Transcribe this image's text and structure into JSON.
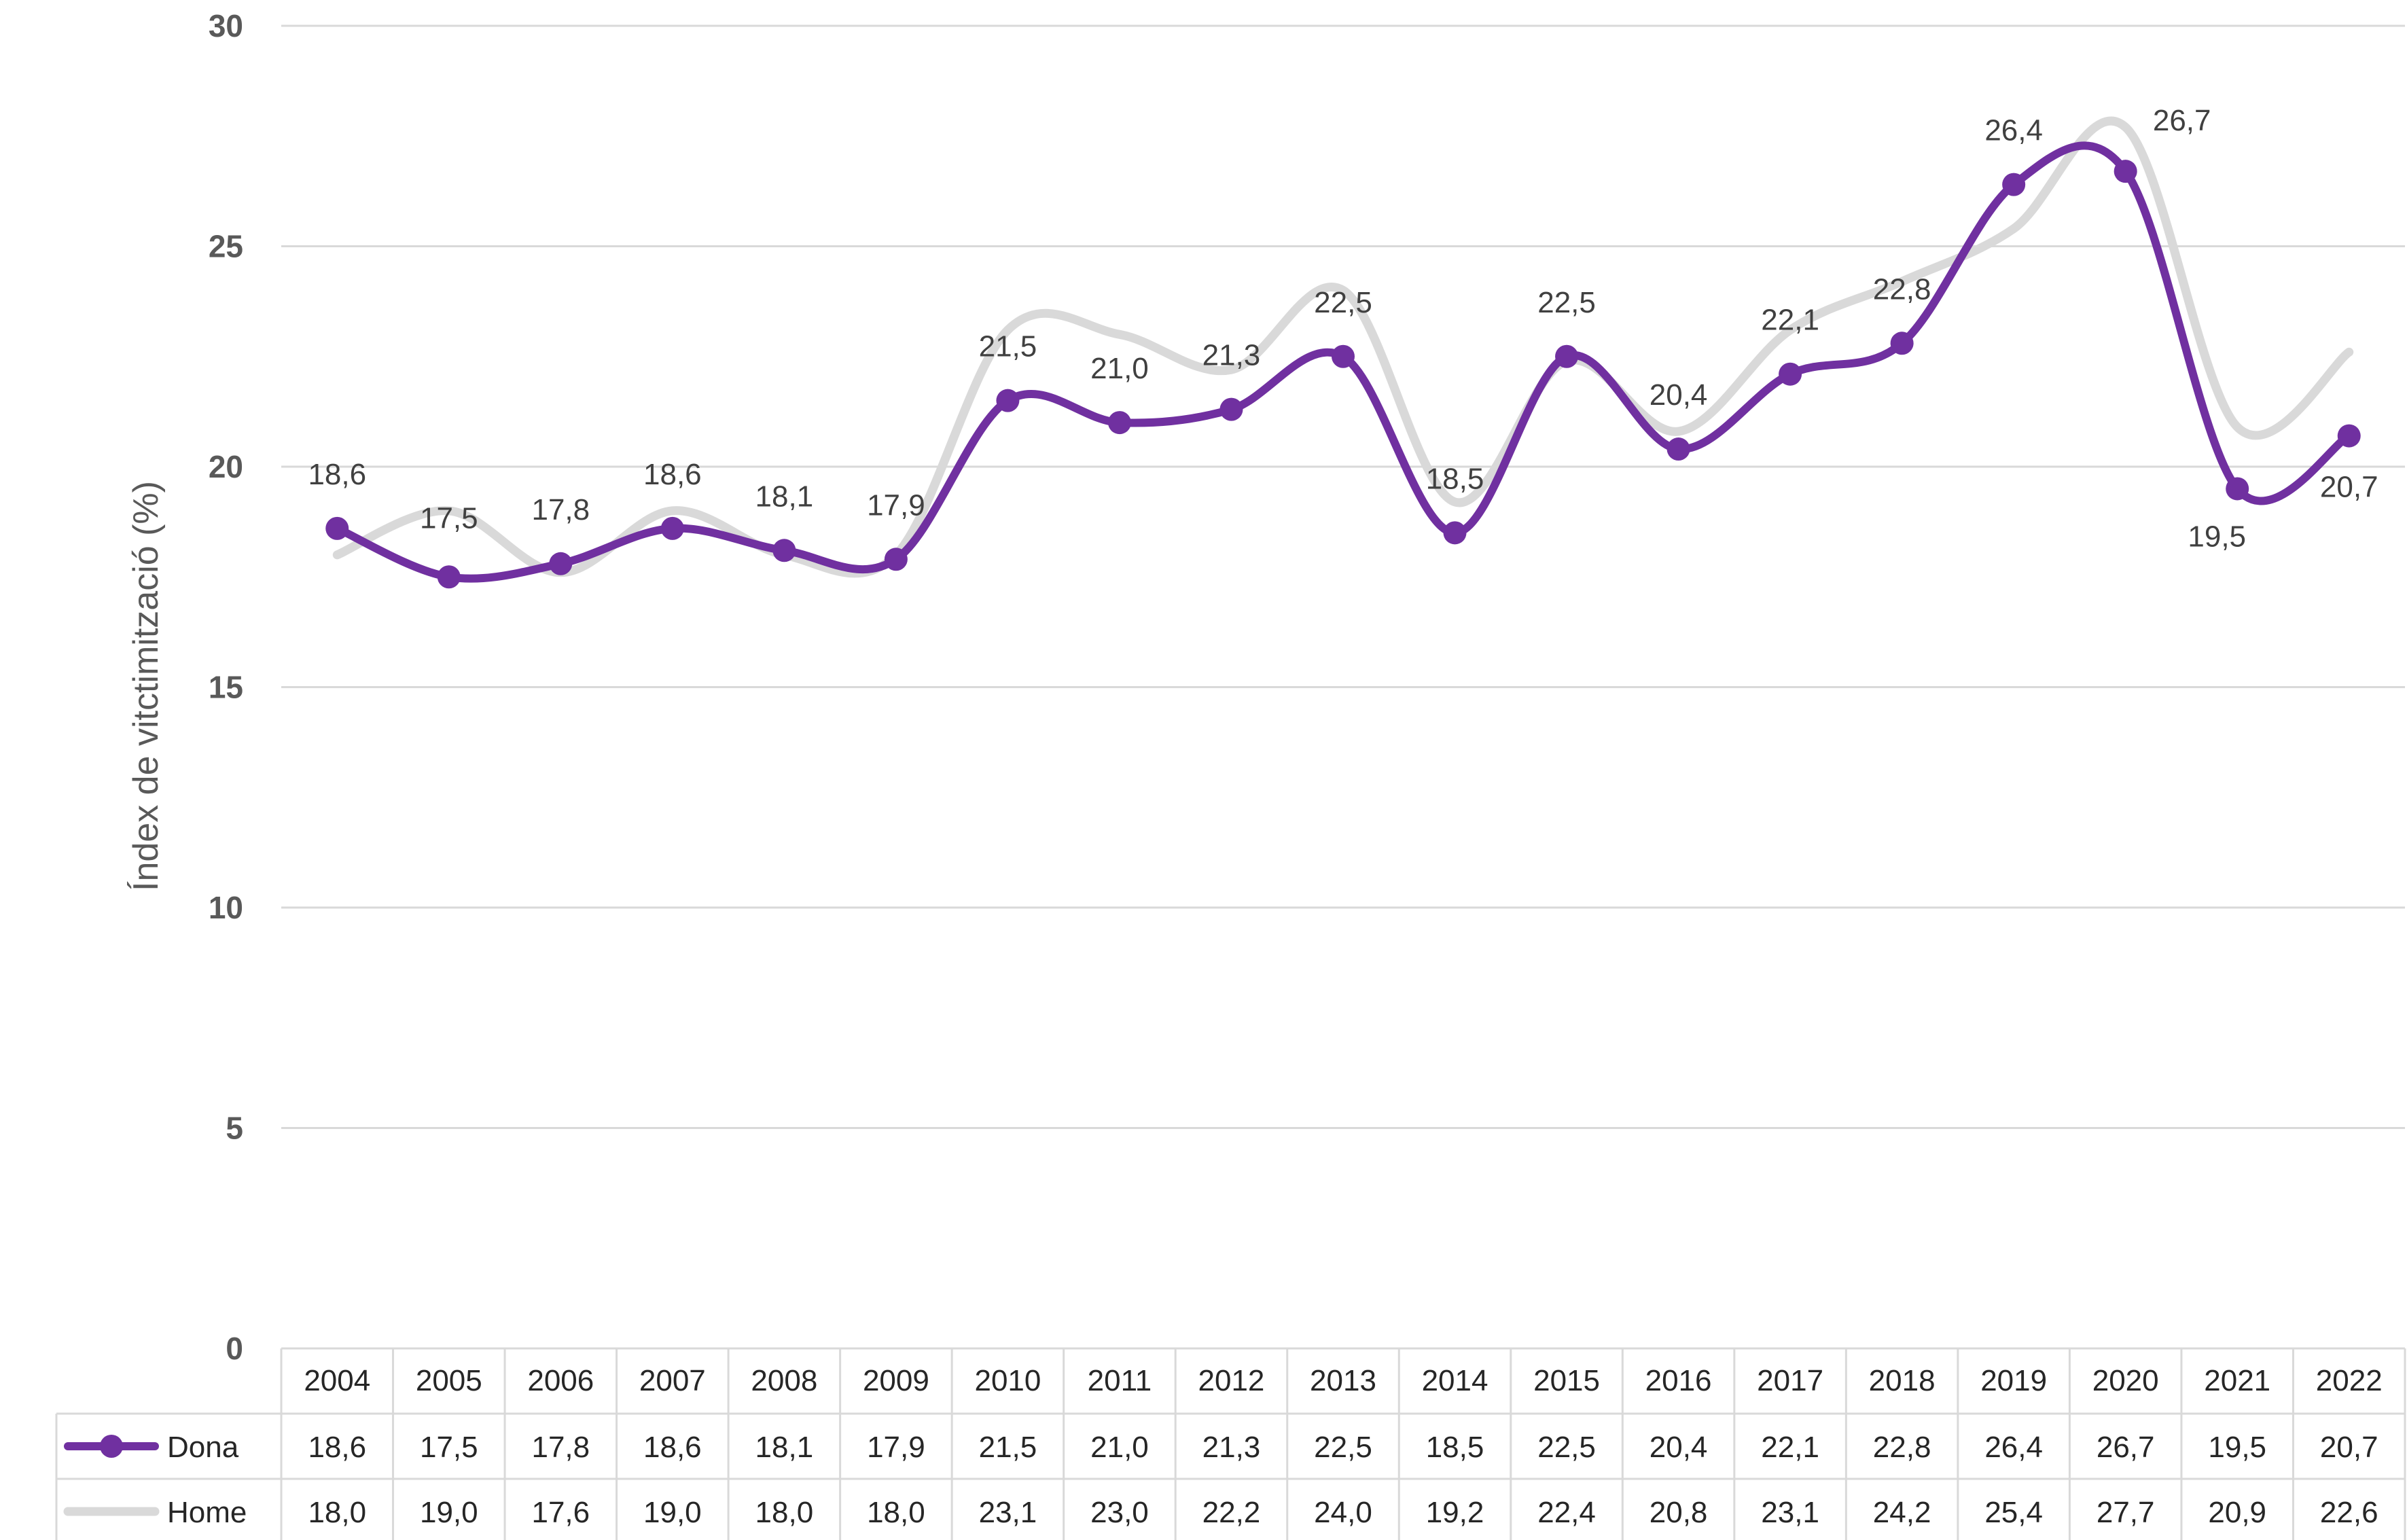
{
  "chart_data": {
    "type": "line",
    "ylabel": "Índex de vitctimització (%)",
    "ylim": [
      0,
      30
    ],
    "yticks": [
      0,
      5,
      10,
      15,
      20,
      25,
      30
    ],
    "grid": true,
    "legend": "data-table",
    "categories": [
      "2004",
      "2005",
      "2006",
      "2007",
      "2008",
      "2009",
      "2010",
      "2011",
      "2012",
      "2013",
      "2014",
      "2015",
      "2016",
      "2017",
      "2018",
      "2019",
      "2020",
      "2021",
      "2022"
    ],
    "series": [
      {
        "name": "Dona",
        "color": "#7030A0",
        "markers": true,
        "values": [
          18.6,
          17.5,
          17.8,
          18.6,
          18.1,
          17.9,
          21.5,
          21.0,
          21.3,
          22.5,
          18.5,
          22.5,
          20.4,
          22.1,
          22.8,
          26.4,
          26.7,
          19.5,
          20.7
        ],
        "labels": [
          "18,6",
          "17,5",
          "17,8",
          "18,6",
          "18,1",
          "17,9",
          "21,5",
          "21,0",
          "21,3",
          "22,5",
          "18,5",
          "22,5",
          "20,4",
          "22,1",
          "22,8",
          "26,4",
          "26,7",
          "19,5",
          "20,7"
        ]
      },
      {
        "name": "Home",
        "color": "#D9D9D9",
        "markers": false,
        "values": [
          18.0,
          19.0,
          17.6,
          19.0,
          18.0,
          18.0,
          23.1,
          23.0,
          22.2,
          24.0,
          19.2,
          22.4,
          20.8,
          23.1,
          24.2,
          25.4,
          27.7,
          20.9,
          22.6
        ],
        "labels": [
          "18,0",
          "19,0",
          "17,6",
          "19,0",
          "18,0",
          "18,0",
          "23,1",
          "23,0",
          "22,2",
          "24,0",
          "19,2",
          "22,4",
          "20,8",
          "23,1",
          "24,2",
          "25,4",
          "27,7",
          "20,9",
          "22,6"
        ]
      }
    ]
  }
}
